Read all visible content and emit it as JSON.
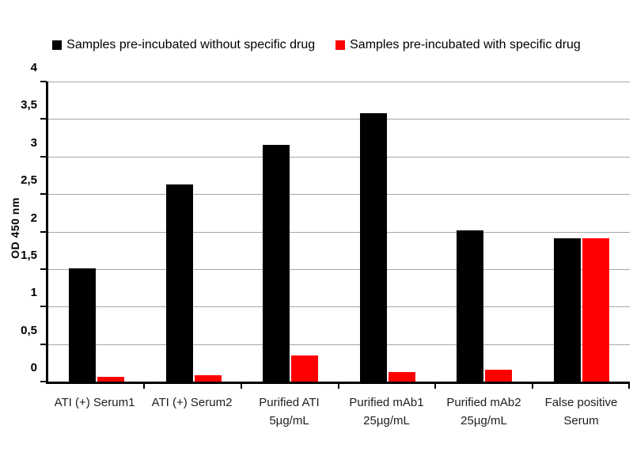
{
  "legend": {
    "items": [
      {
        "label": "Samples pre-incubated without specific drug",
        "color": "#000000"
      },
      {
        "label": "Samples pre-incubated with specific drug",
        "color": "#ff0000"
      }
    ]
  },
  "chart_data": {
    "type": "bar",
    "title": "",
    "xlabel": "",
    "ylabel": "OD 450 nm",
    "ylim": [
      0,
      4
    ],
    "ytick_step": 0.5,
    "ytick_labels": [
      "0",
      "0,5",
      "1",
      "1,5",
      "2",
      "2,5",
      "3",
      "3,5",
      "4"
    ],
    "grid": true,
    "legend_position": "top",
    "categories": [
      "ATI (+) Serum1",
      "ATI (+) Serum2",
      "Purified ATI\n5µg/mL",
      "Purified mAb1\n25µg/mL",
      "Purified mAb2\n25µg/mL",
      "False positive\nSerum"
    ],
    "series": [
      {
        "name": "Samples pre-incubated without specific drug",
        "color": "#000000",
        "values": [
          1.51,
          2.63,
          3.16,
          3.58,
          2.02,
          1.91
        ]
      },
      {
        "name": "Samples pre-incubated with specific drug",
        "color": "#ff0000",
        "values": [
          0.06,
          0.08,
          0.35,
          0.13,
          0.16,
          1.91
        ]
      }
    ],
    "colors": {
      "gridline": "#a6a6a6",
      "axis": "#000000",
      "background": "#ffffff"
    }
  }
}
